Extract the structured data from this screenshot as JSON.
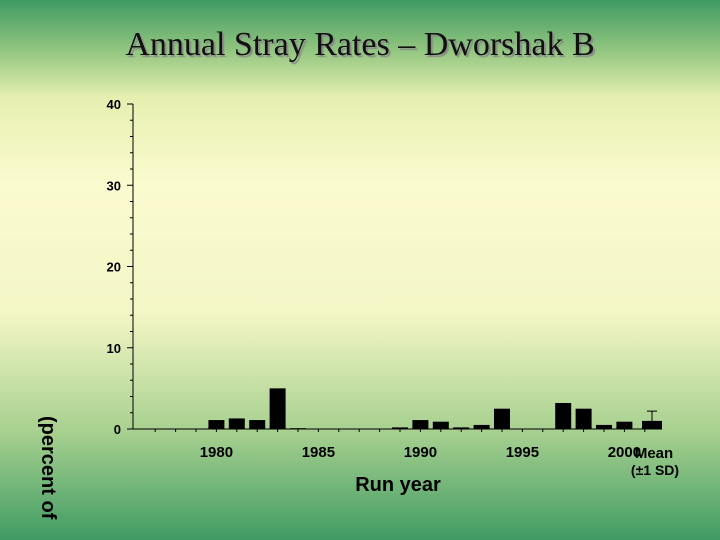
{
  "title": "Annual Stray Rates – Dworshak B",
  "chart_data": {
    "type": "bar",
    "title": "Annual Stray Rates – Dworshak B",
    "xlabel": "Run year",
    "ylabel": "(percent of",
    "ylim": [
      0,
      40
    ],
    "yticks": [
      0,
      10,
      20,
      30,
      40
    ],
    "xticks": [
      "1980",
      "1985",
      "1990",
      "1995",
      "2000"
    ],
    "xlim": [
      1976.5,
      2003.5
    ],
    "mean_label_line1": "Mean",
    "mean_label_line2": "(±1 SD)",
    "grid": false,
    "legend": "none",
    "bar_color": "#000000",
    "years": [
      1980,
      1981,
      1982,
      1983,
      1984,
      1989,
      1990,
      1991,
      1992,
      1993,
      1994,
      1997,
      1998,
      1999,
      2000
    ],
    "values": [
      1.1,
      1.3,
      1.1,
      5.0,
      0.1,
      0.2,
      1.1,
      0.9,
      0.2,
      0.5,
      2.5,
      3.2,
      2.5,
      0.5,
      0.9
    ],
    "mean": {
      "value": 1.0,
      "sd": 1.2
    }
  }
}
